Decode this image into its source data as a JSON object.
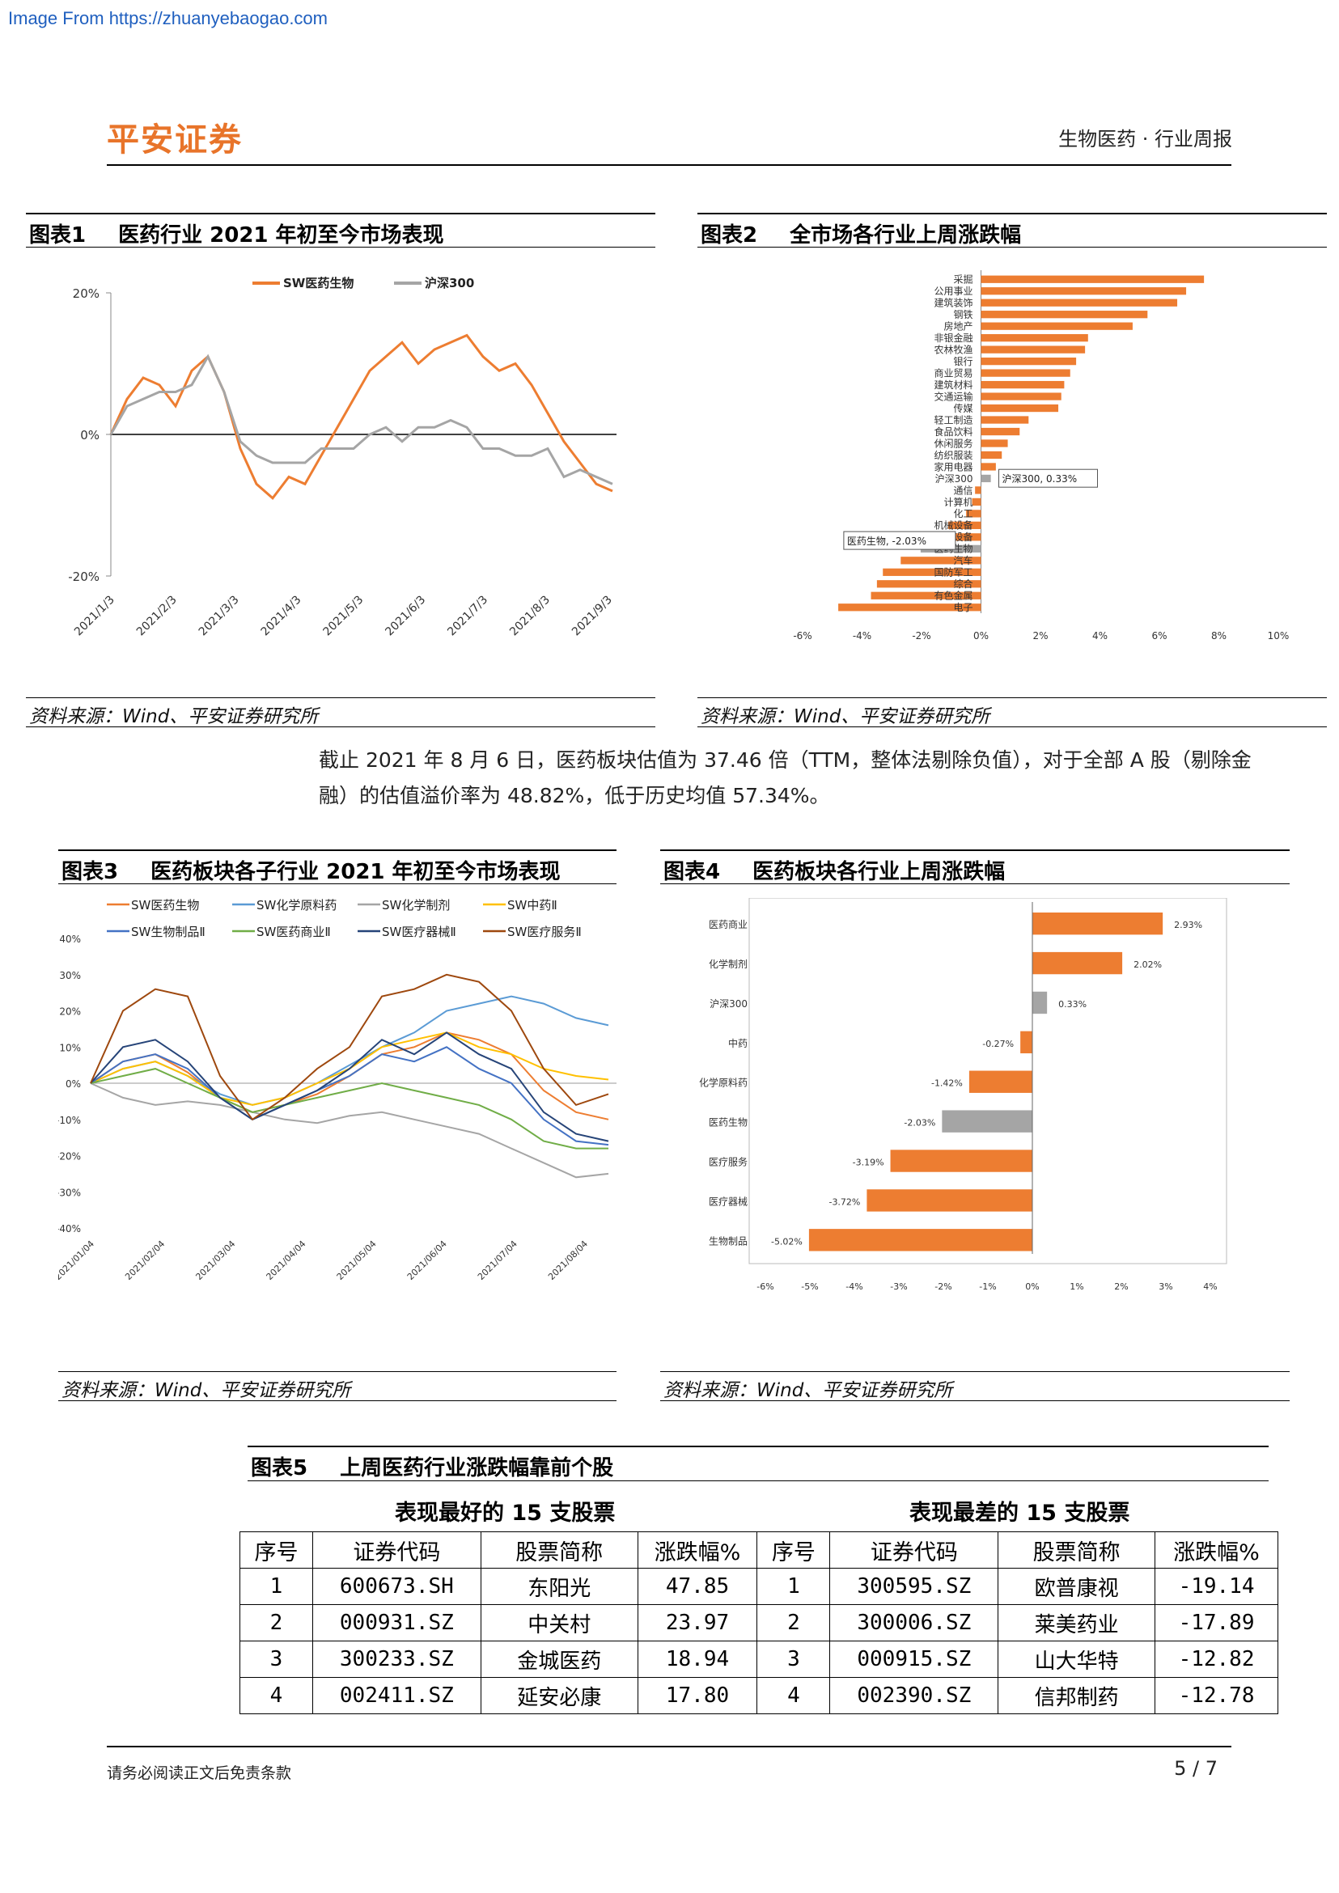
{
  "watermark": "Image From https://zhuanyebaogao.com",
  "header": {
    "logo": "平安证券",
    "report_type": "生物医药 · 行业周报"
  },
  "source_text": "资料来源：Wind、平安证券研究所",
  "fig1": {
    "num": "图表1",
    "title": "医药行业 2021 年初至今市场表现",
    "chart_data": {
      "type": "line",
      "legend": [
        "SW医药生物",
        "沪深300"
      ],
      "yticks": [
        "20%",
        "0%",
        "-20%"
      ],
      "xticks": [
        "2021/1/3",
        "2021/2/3",
        "2021/3/3",
        "2021/4/3",
        "2021/5/3",
        "2021/6/3",
        "2021/7/3",
        "2021/8/3",
        "2021/9/3"
      ],
      "ylim": [
        -20,
        20
      ],
      "series": [
        {
          "name": "SW医药生物",
          "color": "#ed7d31",
          "values": [
            0,
            5,
            8,
            7,
            4,
            9,
            11,
            6,
            -2,
            -7,
            -9,
            -6,
            -7,
            -3,
            1,
            5,
            9,
            11,
            13,
            10,
            12,
            13,
            14,
            11,
            9,
            10,
            7,
            3,
            -1,
            -4,
            -7,
            -8
          ]
        },
        {
          "name": "沪深300",
          "color": "#a5a5a5",
          "values": [
            0,
            4,
            5,
            6,
            6,
            7,
            11,
            6,
            -1,
            -3,
            -4,
            -4,
            -4,
            -2,
            -2,
            -2,
            0,
            1,
            -1,
            1,
            1,
            2,
            1,
            -2,
            -2,
            -3,
            -3,
            -2,
            -6,
            -5,
            -6,
            -7
          ]
        }
      ]
    }
  },
  "fig2": {
    "num": "图表2",
    "title": "全市场各行业上周涨跌幅",
    "chart_data": {
      "type": "bar",
      "categories": [
        "采掘",
        "公用事业",
        "建筑装饰",
        "钢铁",
        "房地产",
        "非银金融",
        "农林牧渔",
        "银行",
        "商业贸易",
        "建筑材料",
        "交通运输",
        "传媒",
        "轻工制造",
        "食品饮料",
        "休闲服务",
        "纺织服装",
        "家用电器",
        "沪深300",
        "通信",
        "计算机",
        "化工",
        "机械设备",
        "电气设备",
        "医药生物",
        "汽车",
        "国防军工",
        "综合",
        "有色金属",
        "电子"
      ],
      "values": [
        7.5,
        6.9,
        6.6,
        5.6,
        5.1,
        3.6,
        3.5,
        3.2,
        3.0,
        2.8,
        2.7,
        2.6,
        1.6,
        1.3,
        0.9,
        0.7,
        0.5,
        0.33,
        -0.2,
        -0.3,
        -0.5,
        -1.1,
        -1.2,
        -2.03,
        -2.7,
        -3.3,
        -3.5,
        -3.7,
        -4.8
      ],
      "callouts": {
        "沪深300": "沪深300, 0.33%",
        "医药生物": "医药生物, -2.03%"
      },
      "xticks": [
        "-6%",
        "-4%",
        "-2%",
        "0%",
        "2%",
        "4%",
        "6%",
        "8%",
        "10%"
      ],
      "xlim": [
        -6,
        10
      ]
    }
  },
  "paragraph": "截止 2021 年 8 月 6 日，医药板块估值为 37.46 倍（TTM，整体法剔除负值），对于全部 A 股（剔除金融）的估值溢价率为 48.82%，低于历史均值 57.34%。",
  "fig3": {
    "num": "图表3",
    "title": "医药板块各子行业 2021 年初至今市场表现",
    "chart_data": {
      "type": "line",
      "yticks": [
        "40%",
        "30%",
        "20%",
        "10%",
        "0%",
        "-10%",
        "-20%",
        "-30%",
        "-40%"
      ],
      "ylim": [
        -40,
        40
      ],
      "xticks": [
        "2021/01/04",
        "2021/02/04",
        "2021/03/04",
        "2021/04/04",
        "2021/05/04",
        "2021/06/04",
        "2021/07/04",
        "2021/08/04"
      ],
      "series": [
        {
          "name": "SW医药生物",
          "color": "#ed7d31",
          "values": [
            0,
            6,
            8,
            3,
            -4,
            -8,
            -6,
            -3,
            2,
            8,
            10,
            14,
            12,
            8,
            -2,
            -8,
            -10
          ]
        },
        {
          "name": "SW化学原料药",
          "color": "#5b9bd5",
          "values": [
            0,
            4,
            6,
            2,
            -3,
            -6,
            -4,
            0,
            5,
            10,
            14,
            20,
            22,
            24,
            22,
            18,
            16
          ]
        },
        {
          "name": "SW化学制剂",
          "color": "#a5a5a5",
          "values": [
            0,
            -4,
            -6,
            -5,
            -6,
            -8,
            -10,
            -11,
            -9,
            -8,
            -10,
            -12,
            -14,
            -18,
            -22,
            -26,
            -25
          ]
        },
        {
          "name": "SW中药Ⅱ",
          "color": "#ffc000",
          "values": [
            0,
            4,
            6,
            2,
            -4,
            -6,
            -4,
            0,
            4,
            10,
            12,
            14,
            10,
            8,
            4,
            2,
            1
          ]
        },
        {
          "name": "SW生物制品Ⅱ",
          "color": "#4472c4",
          "values": [
            0,
            6,
            8,
            4,
            -4,
            -10,
            -6,
            -2,
            2,
            8,
            6,
            10,
            4,
            0,
            -10,
            -16,
            -17
          ]
        },
        {
          "name": "SW医药商业Ⅱ",
          "color": "#70ad47",
          "values": [
            0,
            2,
            4,
            0,
            -4,
            -8,
            -6,
            -4,
            -2,
            0,
            -2,
            -4,
            -6,
            -10,
            -16,
            -18,
            -18
          ]
        },
        {
          "name": "SW医疗器械Ⅱ",
          "color": "#264478",
          "values": [
            0,
            10,
            12,
            6,
            -4,
            -10,
            -6,
            -2,
            4,
            12,
            8,
            14,
            8,
            4,
            -8,
            -14,
            -16
          ]
        },
        {
          "name": "SW医疗服务Ⅱ",
          "color": "#9e480e",
          "values": [
            0,
            20,
            26,
            24,
            2,
            -10,
            -4,
            4,
            10,
            24,
            26,
            30,
            28,
            20,
            4,
            -6,
            -3
          ]
        }
      ]
    }
  },
  "fig4": {
    "num": "图表4",
    "title": "医药板块各行业上周涨跌幅",
    "chart_data": {
      "type": "bar",
      "categories": [
        "医药商业",
        "化学制剂",
        "沪深300",
        "中药",
        "化学原料药",
        "医药生物",
        "医疗服务",
        "医疗器械",
        "生物制品"
      ],
      "values": [
        2.93,
        2.02,
        0.33,
        -0.27,
        -1.42,
        -2.03,
        -3.19,
        -3.72,
        -5.02
      ],
      "labels": [
        "2.93%",
        "2.02%",
        "0.33%",
        "-0.27%",
        "-1.42%",
        "-2.03%",
        "-3.19%",
        "-3.72%",
        "-5.02%"
      ],
      "gray": [
        "沪深300",
        "医药生物"
      ],
      "xticks": [
        "-6%",
        "-5%",
        "-4%",
        "-3%",
        "-2%",
        "-1%",
        "0%",
        "1%",
        "2%",
        "3%",
        "4%"
      ],
      "xlim": [
        -6,
        4
      ]
    }
  },
  "fig5": {
    "num": "图表5",
    "title": "上周医药行业涨跌幅靠前个股",
    "best_title": "表现最好的 15 支股票",
    "worst_title": "表现最差的 15 支股票",
    "headers": [
      "序号",
      "证券代码",
      "股票简称",
      "涨跌幅%",
      "序号",
      "证券代码",
      "股票简称",
      "涨跌幅%"
    ],
    "rows": [
      [
        "1",
        "600673.SH",
        "东阳光",
        "47.85",
        "1",
        "300595.SZ",
        "欧普康视",
        "-19.14"
      ],
      [
        "2",
        "000931.SZ",
        "中关村",
        "23.97",
        "2",
        "300006.SZ",
        "莱美药业",
        "-17.89"
      ],
      [
        "3",
        "300233.SZ",
        "金城医药",
        "18.94",
        "3",
        "000915.SZ",
        "山大华特",
        "-12.82"
      ],
      [
        "4",
        "002411.SZ",
        "延安必康",
        "17.80",
        "4",
        "002390.SZ",
        "信邦制药",
        "-12.78"
      ]
    ]
  },
  "footer": {
    "disclaimer": "请务必阅读正文后免责条款",
    "page": "5 / 7"
  }
}
